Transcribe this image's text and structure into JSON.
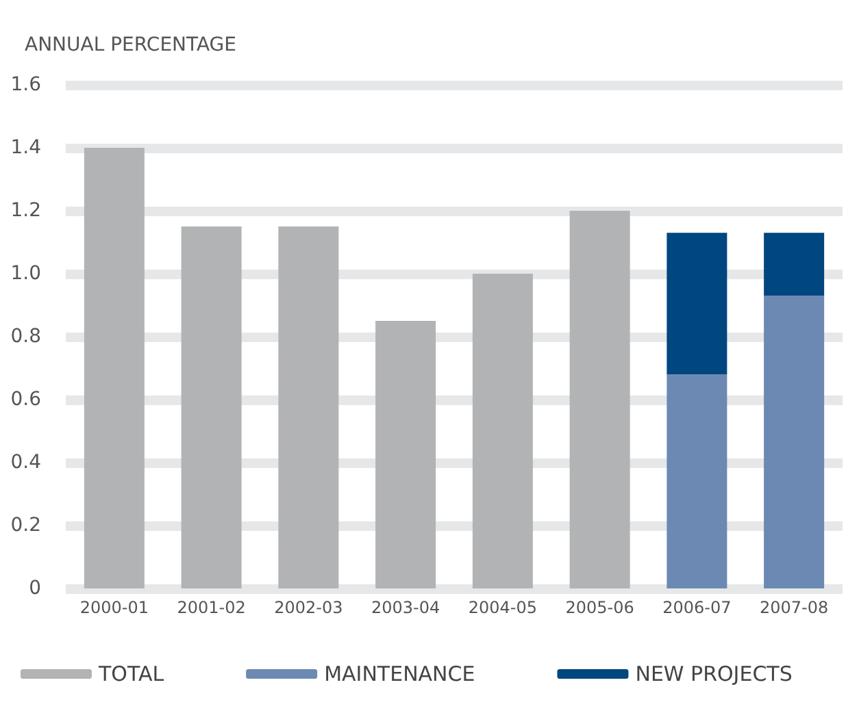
{
  "chart_data": {
    "type": "bar",
    "ylabel": "ANNUAL PERCENTAGE",
    "categories": [
      "2000-01",
      "2001-02",
      "2002-03",
      "2003-04",
      "2004-05",
      "2005-06",
      "2006-07",
      "2007-08"
    ],
    "series": [
      {
        "name": "TOTAL",
        "color": "#b2b3b5",
        "values": [
          1.4,
          1.15,
          1.15,
          0.85,
          1.0,
          1.2,
          null,
          null
        ]
      },
      {
        "name": "MAINTENANCE",
        "color": "#6b89b2",
        "values": [
          null,
          null,
          null,
          null,
          null,
          null,
          0.68,
          0.93
        ]
      },
      {
        "name": "NEW PROJECTS",
        "color": "#00467f",
        "values": [
          null,
          null,
          null,
          null,
          null,
          null,
          0.45,
          0.2
        ]
      }
    ],
    "stacked": true,
    "ylim": [
      0,
      1.6
    ],
    "yticks": [
      0,
      0.2,
      0.4,
      0.6,
      0.8,
      {
        "value": 1,
        "label": "1.0"
      },
      1.2,
      1.4,
      1.6
    ],
    "grid": "y",
    "legend": "bottom"
  }
}
